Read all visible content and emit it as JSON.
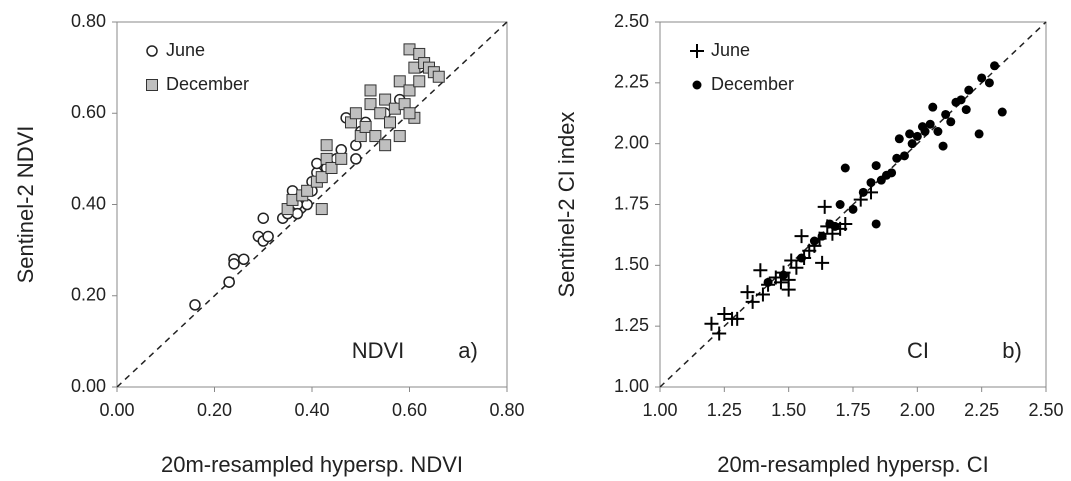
{
  "chart_data": [
    {
      "type": "scatter",
      "x_label": "20m-resampled hypersp. NDVI",
      "y_label": "Sentinel-2 NDVI",
      "annotations": [
        "NDVI",
        "a)"
      ],
      "xlim": [
        0,
        0.8
      ],
      "ylim": [
        0,
        0.8
      ],
      "xticks": [
        {
          "value": 0,
          "label": "0.00"
        },
        {
          "value": 0.2,
          "label": "0.20"
        },
        {
          "value": 0.4,
          "label": "0.40"
        },
        {
          "value": 0.6,
          "label": "0.60"
        },
        {
          "value": 0.8,
          "label": "0.80"
        }
      ],
      "yticks": [
        {
          "value": 0,
          "label": "0.00"
        },
        {
          "value": 0.2,
          "label": "0.20"
        },
        {
          "value": 0.4,
          "label": "0.40"
        },
        {
          "value": 0.6,
          "label": "0.60"
        },
        {
          "value": 0.8,
          "label": "0.80"
        }
      ],
      "series": [
        {
          "name": "June",
          "marker": "circle-open",
          "color": "#ffffff",
          "x": [
            0.16,
            0.23,
            0.23,
            0.24,
            0.24,
            0.26,
            0.29,
            0.3,
            0.3,
            0.31,
            0.34,
            0.35,
            0.36,
            0.37,
            0.37,
            0.38,
            0.39,
            0.4,
            0.4,
            0.41,
            0.41,
            0.42,
            0.43,
            0.44,
            0.45,
            0.46,
            0.47,
            0.49,
            0.49,
            0.5,
            0.51,
            0.55,
            0.58,
            0.6,
            0.62
          ],
          "values": [
            0.18,
            0.23,
            0.23,
            0.28,
            0.27,
            0.28,
            0.33,
            0.32,
            0.37,
            0.33,
            0.37,
            0.38,
            0.43,
            0.4,
            0.38,
            0.42,
            0.4,
            0.45,
            0.43,
            0.47,
            0.49,
            0.46,
            0.48,
            0.49,
            0.5,
            0.52,
            0.59,
            0.53,
            0.5,
            0.56,
            0.58,
            0.6,
            0.63,
            0.65,
            0.7
          ]
        },
        {
          "name": "December",
          "marker": "square",
          "color": "#bfbfbf",
          "x": [
            0.35,
            0.36,
            0.38,
            0.39,
            0.41,
            0.42,
            0.42,
            0.43,
            0.43,
            0.44,
            0.46,
            0.48,
            0.49,
            0.5,
            0.51,
            0.52,
            0.52,
            0.53,
            0.54,
            0.55,
            0.55,
            0.56,
            0.57,
            0.58,
            0.58,
            0.59,
            0.6,
            0.6,
            0.61,
            0.61,
            0.62,
            0.62,
            0.63,
            0.64,
            0.65,
            0.66,
            0.6
          ],
          "values": [
            0.39,
            0.41,
            0.42,
            0.43,
            0.45,
            0.39,
            0.46,
            0.5,
            0.53,
            0.48,
            0.5,
            0.58,
            0.6,
            0.55,
            0.57,
            0.65,
            0.62,
            0.55,
            0.6,
            0.53,
            0.63,
            0.58,
            0.61,
            0.55,
            0.67,
            0.62,
            0.74,
            0.65,
            0.59,
            0.7,
            0.73,
            0.67,
            0.71,
            0.7,
            0.69,
            0.68,
            0.6
          ]
        }
      ]
    },
    {
      "type": "scatter",
      "x_label": "20m-resampled hypersp. CI",
      "y_label": "Sentinel-2 CI index",
      "annotations": [
        "CI",
        "b)"
      ],
      "xlim": [
        1,
        2.5
      ],
      "ylim": [
        1,
        2.5
      ],
      "xticks": [
        {
          "value": 1,
          "label": "1.00"
        },
        1.25,
        {
          "value": 1.5,
          "label": "1.50"
        },
        1.75,
        {
          "value": 2,
          "label": "2.00"
        },
        2.25,
        {
          "value": 2.5,
          "label": "2.50"
        }
      ],
      "yticks": [
        {
          "value": 1,
          "label": "1.00"
        },
        1.25,
        {
          "value": 1.5,
          "label": "1.50"
        },
        1.75,
        {
          "value": 2,
          "label": "2.00"
        },
        2.25,
        {
          "value": 2.5,
          "label": "2.50"
        }
      ],
      "series": [
        {
          "name": "June",
          "marker": "plus",
          "color": "#000000",
          "x": [
            1.2,
            1.23,
            1.25,
            1.28,
            1.3,
            1.34,
            1.36,
            1.39,
            1.4,
            1.42,
            1.45,
            1.47,
            1.48,
            1.5,
            1.5,
            1.51,
            1.53,
            1.55,
            1.56,
            1.58,
            1.6,
            1.62,
            1.63,
            1.64,
            1.65,
            1.67,
            1.7,
            1.72,
            1.78,
            1.82
          ],
          "values": [
            1.26,
            1.22,
            1.3,
            1.28,
            1.28,
            1.39,
            1.35,
            1.48,
            1.38,
            1.42,
            1.45,
            1.43,
            1.47,
            1.4,
            1.44,
            1.52,
            1.49,
            1.62,
            1.53,
            1.56,
            1.58,
            1.61,
            1.51,
            1.74,
            1.66,
            1.63,
            1.65,
            1.67,
            1.77,
            1.8
          ]
        },
        {
          "name": "December",
          "marker": "circle",
          "color": "#000000",
          "x": [
            1.42,
            1.48,
            1.55,
            1.6,
            1.63,
            1.66,
            1.68,
            1.7,
            1.72,
            1.75,
            1.79,
            1.82,
            1.84,
            1.84,
            1.86,
            1.88,
            1.9,
            1.92,
            1.93,
            1.95,
            1.97,
            1.98,
            2.0,
            2.02,
            2.03,
            2.05,
            2.06,
            2.08,
            2.1,
            2.11,
            2.13,
            2.15,
            2.17,
            2.19,
            2.2,
            2.24,
            2.25,
            2.28,
            2.3,
            2.33
          ],
          "values": [
            1.43,
            1.46,
            1.53,
            1.6,
            1.62,
            1.67,
            1.66,
            1.75,
            1.9,
            1.73,
            1.8,
            1.84,
            1.67,
            1.91,
            1.85,
            1.87,
            1.88,
            1.94,
            2.02,
            1.95,
            2.04,
            2.0,
            2.03,
            2.07,
            2.05,
            2.08,
            2.15,
            2.05,
            1.99,
            2.12,
            2.09,
            2.17,
            2.18,
            2.14,
            2.22,
            2.04,
            2.27,
            2.25,
            2.32,
            2.13
          ]
        }
      ]
    }
  ]
}
